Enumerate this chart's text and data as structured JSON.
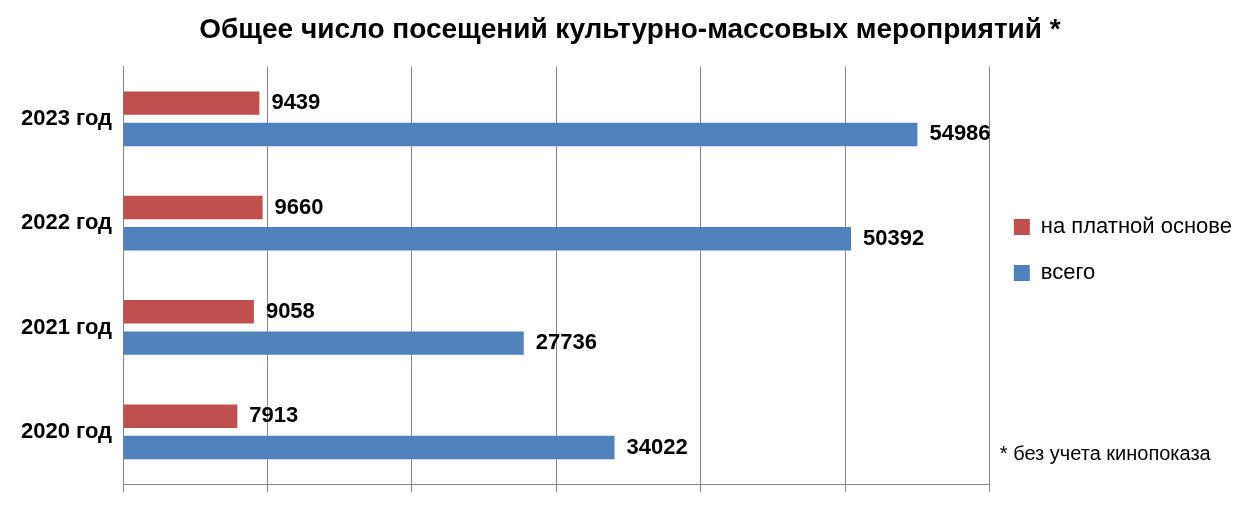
{
  "chart_data": {
    "type": "bar",
    "orientation": "horizontal",
    "title": "Общее число посещений культурно-массовых мероприятий *",
    "categories": [
      "2023 год",
      "2022 год",
      "2021 год",
      "2020 год"
    ],
    "series": [
      {
        "name": "на платной основе",
        "color": "#c0504d",
        "values": [
          9439,
          9660,
          9058,
          7913
        ]
      },
      {
        "name": "всего",
        "color": "#4f81bd",
        "values": [
          54986,
          50392,
          27736,
          34022
        ]
      }
    ],
    "xlim": [
      0,
      60000
    ],
    "xticks": [
      {
        "value": 0,
        "label": null
      },
      {
        "value": 10000,
        "label": null
      },
      {
        "value": 20000,
        "label": null
      },
      {
        "value": 30000,
        "label": null
      },
      {
        "value": 40000,
        "label": null
      },
      {
        "value": 50000,
        "label": null
      },
      {
        "value": 60000,
        "label": null
      }
    ],
    "tick_labels": "y",
    "grid": "x",
    "legend": "right",
    "data_labels": true,
    "annotations": [
      "* без учета кинопоказа"
    ]
  }
}
